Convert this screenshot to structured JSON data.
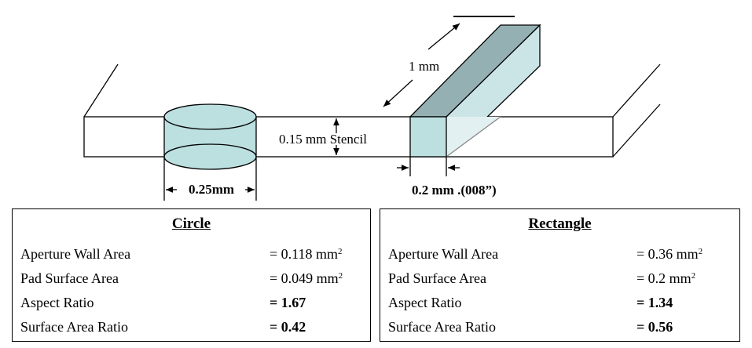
{
  "diagram": {
    "dim_length": "1  mm",
    "dim_thickness": "0.15 mm Stencil",
    "dim_circle": "0.25mm",
    "dim_rect": "0.2 mm .(008”)",
    "colors": {
      "aperture_fill": "#bcdfe0",
      "rect_top": "#94b0b3",
      "rect_side": "#cbe4e6",
      "rect_side_light": "#e3f0f1"
    }
  },
  "circle": {
    "title": "Circle",
    "rows": [
      {
        "label": "Aperture Wall Area",
        "value": "= 0.118 mm",
        "sup": "2",
        "bold": false
      },
      {
        "label": "Pad Surface Area",
        "value": "= 0.049 mm",
        "sup": "2",
        "bold": false
      },
      {
        "label": "Aspect Ratio",
        "value": "= 1.67",
        "sup": "",
        "bold": true
      },
      {
        "label": "Surface Area Ratio",
        "value": "= 0.42",
        "sup": "",
        "bold": true
      }
    ]
  },
  "rectangle": {
    "title": "Rectangle",
    "rows": [
      {
        "label": "Aperture Wall Area",
        "value": "= 0.36 mm",
        "sup": "2",
        "bold": false
      },
      {
        "label": "Pad Surface Area",
        "value": "= 0.2 mm",
        "sup": "2",
        "bold": false
      },
      {
        "label": "Aspect Ratio",
        "value": "= 1.34",
        "sup": "",
        "bold": true
      },
      {
        "label": "Surface Area Ratio",
        "value": "= 0.56",
        "sup": "",
        "bold": true
      }
    ]
  }
}
